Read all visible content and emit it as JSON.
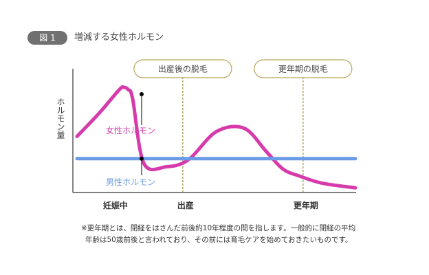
{
  "figure": {
    "badge": "図 1",
    "title": "増減する女性ホルモン"
  },
  "chart_data": {
    "type": "line",
    "ylabel": "ホルモン量",
    "x_ticks": [
      "妊娠中",
      "出産",
      "更年期"
    ],
    "events": [
      {
        "label": "出産後の脱毛",
        "at": "出産"
      },
      {
        "label": "更年期の脱毛",
        "at": "更年期"
      }
    ],
    "series": [
      {
        "name": "女性ホルモン",
        "color": "#d63aab",
        "x": [
          0.0,
          0.2,
          0.38,
          0.42,
          0.46,
          0.5,
          0.6,
          0.8,
          1.0,
          1.25,
          1.5,
          1.7,
          1.85,
          2.0,
          2.2,
          2.5
        ],
        "y": [
          0.48,
          0.68,
          0.88,
          0.9,
          0.88,
          0.8,
          0.25,
          0.22,
          0.28,
          0.52,
          0.55,
          0.35,
          0.2,
          0.14,
          0.08,
          0.04
        ]
      },
      {
        "name": "男性ホルモン",
        "color": "#6b9ae6",
        "x": [
          0.0,
          2.5
        ],
        "y": [
          0.29,
          0.29
        ]
      }
    ]
  },
  "footnote": {
    "line1": "※更年期とは、閉経をはさんだ前後約10年程度の間を指します。一般的に閉経の平均",
    "line2": "年齢は50歳前後と言われており、その前には育毛ケアを始めておきたいものです。"
  }
}
